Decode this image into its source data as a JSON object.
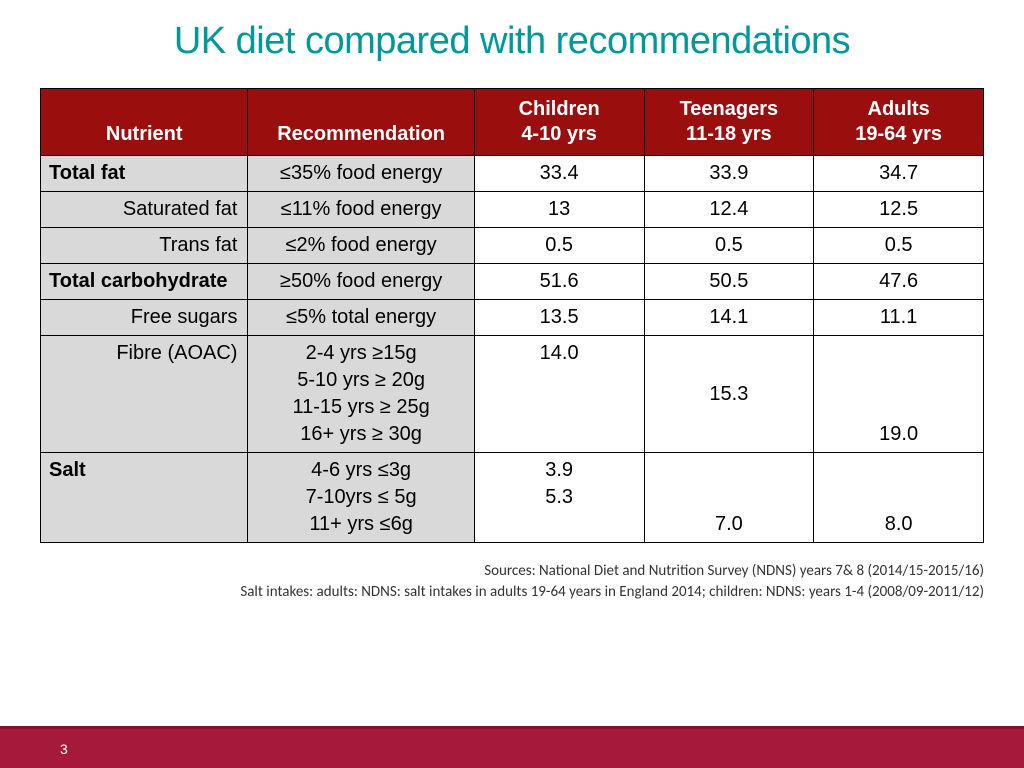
{
  "title": "UK diet compared with recommendations",
  "columns": [
    "Nutrient",
    "Recommendation",
    "Children\n4-10 yrs",
    "Teenagers\n11-18 yrs",
    "Adults\n19-64 yrs"
  ],
  "rows": [
    {
      "nutrient": "Total fat",
      "sub": false,
      "rec": "≤35%  food energy",
      "vals": [
        "33.4",
        "33.9",
        "34.7"
      ]
    },
    {
      "nutrient": "Saturated fat",
      "sub": true,
      "rec": "≤11%  food energy",
      "vals": [
        "13",
        "12.4",
        "12.5"
      ]
    },
    {
      "nutrient": "Trans fat",
      "sub": true,
      "rec": "≤2% food energy",
      "vals": [
        "0.5",
        "0.5",
        "0.5"
      ]
    },
    {
      "nutrient": "Total carbohydrate",
      "sub": false,
      "rec": "≥50% food energy",
      "vals": [
        "51.6",
        "50.5",
        "47.6"
      ]
    },
    {
      "nutrient": "Free sugars",
      "sub": true,
      "rec": "≤5%  total energy",
      "vals": [
        "13.5",
        "14.1",
        "11.1"
      ]
    },
    {
      "nutrient": "Fibre (AOAC)",
      "sub": true,
      "rec": "2-4 yrs ≥15g\n5-10 yrs ≥ 20g\n11-15 yrs ≥ 25g\n16+ yrs ≥ 30g",
      "vals": [
        "14.0",
        "15.3",
        "19.0"
      ],
      "valign": [
        "top",
        "mid",
        "bot"
      ]
    },
    {
      "nutrient": "Salt",
      "sub": false,
      "rec": "4-6 yrs ≤3g\n7-10yrs ≤ 5g\n11+ yrs  ≤6g",
      "vals": [
        "3.9\n5.3",
        "7.0",
        "8.0"
      ],
      "valign": [
        "top",
        "bot",
        "bot"
      ]
    }
  ],
  "sources": [
    "Sources: National Diet and Nutrition Survey (NDNS) years 7& 8 (2014/15-2015/16)",
    "Salt intakes: adults: NDNS: salt intakes in adults 19-64 years in England 2014; children: NDNS: years 1-4 (2008/09-2011/12)"
  ],
  "page_number": "3",
  "colors": {
    "title": "#009999",
    "header_bg": "#9b0e0e",
    "shade_bg": "#d9d9d9",
    "footer_bg": "#a6193a"
  }
}
